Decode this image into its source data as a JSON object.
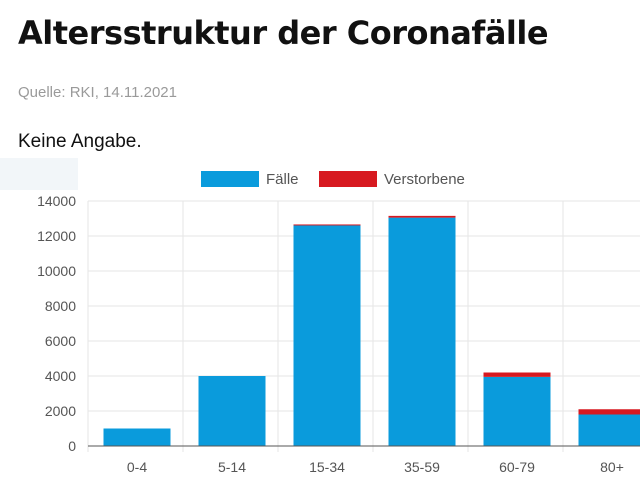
{
  "header": {
    "title": "Altersstruktur der Coronafälle",
    "source": "Quelle: RKI, 14.11.2021",
    "subtitle": "Keine Angabe."
  },
  "colors": {
    "faelle": "#0a9bdc",
    "verstorbene": "#d71920",
    "grid": "#e6e6e6",
    "axis": "#555555"
  },
  "chart_data": {
    "type": "bar",
    "stacked": true,
    "categories": [
      "0-4",
      "5-14",
      "15-34",
      "35-59",
      "60-79",
      "80+"
    ],
    "series": [
      {
        "name": "Fälle",
        "values": [
          1000,
          4000,
          12650,
          13050,
          3950,
          1800
        ]
      },
      {
        "name": "Verstorbene",
        "values": [
          0,
          0,
          10,
          100,
          250,
          300
        ]
      }
    ],
    "ylim": [
      0,
      14000
    ],
    "yticks": [
      0,
      2000,
      4000,
      6000,
      8000,
      10000,
      12000,
      14000
    ],
    "grid": true,
    "legend": "top-center"
  }
}
